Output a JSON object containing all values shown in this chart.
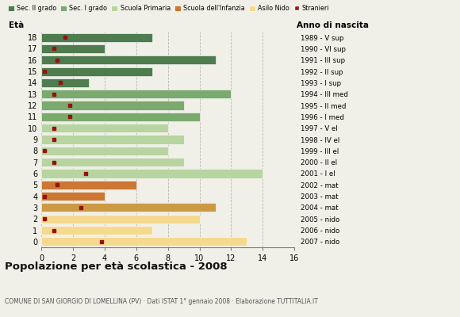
{
  "ages": [
    18,
    17,
    16,
    15,
    14,
    13,
    12,
    11,
    10,
    9,
    8,
    7,
    6,
    5,
    4,
    3,
    2,
    1,
    0
  ],
  "years": [
    "1989 - V sup",
    "1990 - VI sup",
    "1991 - III sup",
    "1992 - II sup",
    "1993 - I sup",
    "1994 - III med",
    "1995 - II med",
    "1996 - I med",
    "1997 - V el",
    "1998 - IV el",
    "1999 - III el",
    "2000 - II el",
    "2001 - I el",
    "2002 - mat",
    "2003 - mat",
    "2004 - mat",
    "2005 - nido",
    "2006 - nido",
    "2007 - nido"
  ],
  "bar_values": [
    7,
    4,
    11,
    7,
    3,
    12,
    9,
    10,
    8,
    9,
    8,
    9,
    14,
    6,
    4,
    11,
    10,
    7,
    13
  ],
  "stranieri": [
    1.5,
    0.8,
    1.0,
    0.2,
    1.2,
    0.8,
    1.8,
    1.8,
    0.8,
    0.8,
    0.2,
    0.8,
    2.8,
    1.0,
    0.2,
    2.5,
    0.2,
    0.8,
    3.8
  ],
  "bar_colors": [
    "#4e7c4e",
    "#4e7c4e",
    "#4e7c4e",
    "#4e7c4e",
    "#4e7c4e",
    "#7aaa6e",
    "#7aaa6e",
    "#7aaa6e",
    "#b8d4a0",
    "#b8d4a0",
    "#b8d4a0",
    "#b8d4a0",
    "#b8d4a0",
    "#cc7733",
    "#cc7733",
    "#cc9944",
    "#f5d98e",
    "#f5d98e",
    "#f5d98e"
  ],
  "legend_labels": [
    "Sec. II grado",
    "Sec. I grado",
    "Scuola Primaria",
    "Scuola dell'Infanzia",
    "Asilo Nido",
    "Stranieri"
  ],
  "legend_colors": [
    "#4e7c4e",
    "#7aaa6e",
    "#b8d4a0",
    "#cc7733",
    "#f5d98e",
    "#aa1111"
  ],
  "title": "Popolazione per età scolastica - 2008",
  "subtitle": "COMUNE DI SAN GIORGIO DI LOMELLINA (PV) · Dati ISTAT 1° gennaio 2008 · Elaborazione TUTTITALIA.IT",
  "xlabel_left": "Età",
  "xlabel_right": "Anno di nascita",
  "xlim": [
    0,
    16
  ],
  "xticks": [
    0,
    2,
    4,
    6,
    8,
    10,
    12,
    14,
    16
  ],
  "background_color": "#f0f0e8",
  "stranieri_color": "#991111"
}
